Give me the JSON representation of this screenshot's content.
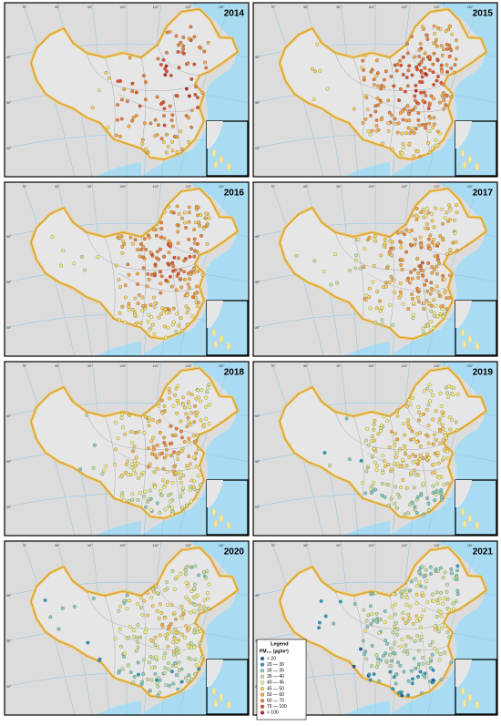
{
  "panels": [
    {
      "year": "2014"
    },
    {
      "year": "2015"
    },
    {
      "year": "2016"
    },
    {
      "year": "2017"
    },
    {
      "year": "2018"
    },
    {
      "year": "2019"
    },
    {
      "year": "2020"
    },
    {
      "year": "2021"
    }
  ],
  "graticule": {
    "top": [
      "70°",
      "80°",
      "90°",
      "100°",
      "110°",
      "120°",
      "130°"
    ],
    "left": [
      "40°",
      "30°",
      "20°"
    ]
  },
  "legend": {
    "title": "Legend",
    "unit": "PM₂.₅ (μg/m³)",
    "items": [
      {
        "label": "< 20",
        "color": "#1f5fa8"
      },
      {
        "label": "20 — 30",
        "color": "#2b9ac2"
      },
      {
        "label": "30 — 35",
        "color": "#7fcbbf"
      },
      {
        "label": "35 — 40",
        "color": "#c6e39a"
      },
      {
        "label": "40 — 45",
        "color": "#f4ee7a"
      },
      {
        "label": "45 — 50",
        "color": "#f8d35e"
      },
      {
        "label": "50 — 60",
        "color": "#f5aa45"
      },
      {
        "label": "60 — 70",
        "color": "#ee7f35"
      },
      {
        "label": "70 — 100",
        "color": "#e2512a"
      },
      {
        "label": "> 100",
        "color": "#c8201e"
      }
    ]
  }
}
